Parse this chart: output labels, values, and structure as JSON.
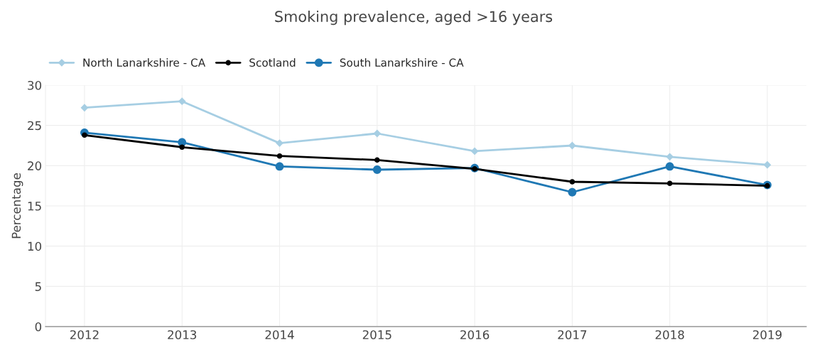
{
  "chart_data": {
    "type": "line",
    "title": "Smoking prevalence, aged >16 years",
    "ylabel": "Percentage",
    "categories": [
      "2012",
      "2013",
      "2014",
      "2015",
      "2016",
      "2017",
      "2018",
      "2019"
    ],
    "series": [
      {
        "name": "North Lanarkshire - CA",
        "color": "#a6cee3",
        "marker": "diamond",
        "values": [
          27.2,
          28.0,
          22.8,
          24.0,
          21.8,
          22.5,
          21.1,
          20.1
        ]
      },
      {
        "name": "Scotland",
        "color": "#000000",
        "marker": "circle",
        "values": [
          23.8,
          22.3,
          21.2,
          20.7,
          19.6,
          18.0,
          17.8,
          17.5
        ]
      },
      {
        "name": "South Lanarkshire - CA",
        "color": "#1f78b4",
        "marker": "circle",
        "values": [
          24.1,
          22.9,
          19.9,
          19.5,
          19.7,
          16.7,
          19.9,
          17.6
        ]
      }
    ],
    "ylim": [
      0,
      30
    ],
    "yticks": [
      0,
      5,
      10,
      15,
      20,
      25,
      30
    ],
    "grid": true,
    "legend": "top left",
    "line_style": "solid"
  }
}
